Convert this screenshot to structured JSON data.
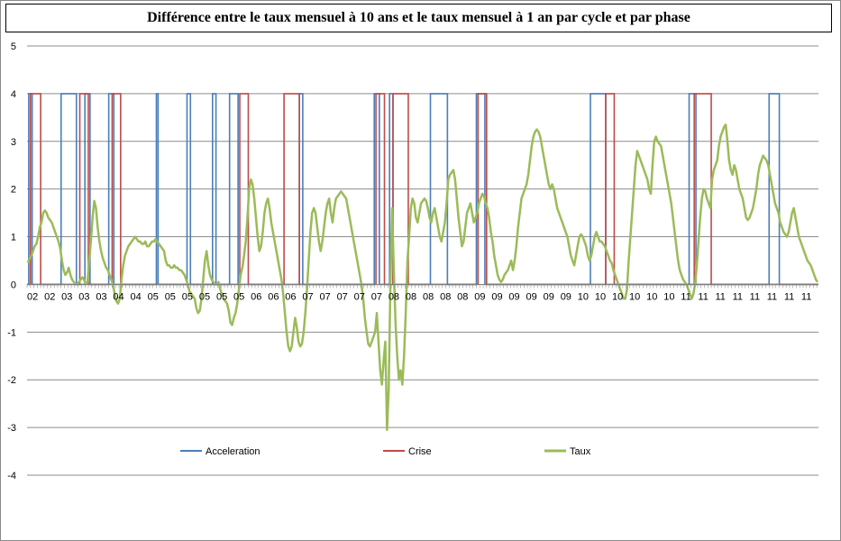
{
  "chart_data": {
    "type": "line",
    "title": "Différence entre le taux mensuel à 10 ans et le taux mensuel à 1 an par cycle et par phase",
    "xlabel": "",
    "ylabel": "",
    "ylim": [
      -4,
      5
    ],
    "yticks": [
      -4,
      -3,
      -2,
      -1,
      0,
      1,
      2,
      3,
      4,
      5
    ],
    "grid": true,
    "legend_position": "bottom",
    "x_tick_labels": [
      "02",
      "02",
      "03",
      "03",
      "03",
      "04",
      "04",
      "05",
      "05",
      "05",
      "05",
      "05",
      "05",
      "06",
      "06",
      "06",
      "07",
      "07",
      "07",
      "07",
      "07",
      "08",
      "08",
      "08",
      "08",
      "08",
      "09",
      "09",
      "09",
      "09",
      "09",
      "09",
      "10",
      "10",
      "10",
      "10",
      "10",
      "10",
      "11",
      "11",
      "11",
      "11",
      "11",
      "11",
      "11",
      "11"
    ],
    "series": [
      {
        "name": "Acceleration",
        "color": "#4a7ebb",
        "kind": "step",
        "intervals_on": [
          [
            1,
            2
          ],
          [
            20,
            28
          ],
          [
            34,
            36
          ],
          [
            48,
            50
          ],
          [
            76,
            76
          ],
          [
            94,
            95
          ],
          [
            109,
            110
          ],
          [
            119,
            123
          ],
          [
            160,
            161
          ],
          [
            204,
            206
          ],
          [
            213,
            214
          ],
          [
            237,
            246
          ],
          [
            264,
            268
          ],
          [
            331,
            339
          ],
          [
            389,
            392
          ],
          [
            436,
            441
          ]
        ]
      },
      {
        "name": "Crise",
        "color": "#be4b48",
        "kind": "step",
        "intervals_on": [
          [
            2,
            7
          ],
          [
            31,
            35
          ],
          [
            50,
            54
          ],
          [
            125,
            129
          ],
          [
            151,
            159
          ],
          [
            205,
            209
          ],
          [
            215,
            223
          ],
          [
            265,
            269
          ],
          [
            340,
            344
          ],
          [
            392,
            401
          ]
        ]
      },
      {
        "name": "Taux",
        "color": "#9bbb59",
        "kind": "line",
        "values": [
          0.45,
          0.55,
          0.6,
          0.7,
          0.8,
          0.85,
          1,
          1.2,
          1.3,
          1.5,
          1.55,
          1.5,
          1.4,
          1.35,
          1.3,
          1.2,
          1.1,
          1,
          0.9,
          0.75,
          0.5,
          0.3,
          0.2,
          0.25,
          0.35,
          0.2,
          0.1,
          0.05,
          0,
          0,
          0.05,
          0.1,
          0.15,
          0.1,
          0,
          0.05,
          0.5,
          0.9,
          1.4,
          1.75,
          1.6,
          1.2,
          0.9,
          0.7,
          0.55,
          0.45,
          0.35,
          0.3,
          0.2,
          0.1,
          0,
          -0.2,
          -0.35,
          -0.4,
          -0.3,
          0.1,
          0.4,
          0.6,
          0.7,
          0.8,
          0.85,
          0.9,
          0.95,
          1,
          0.95,
          0.9,
          0.9,
          0.85,
          0.85,
          0.9,
          0.8,
          0.8,
          0.85,
          0.9,
          0.9,
          0.95,
          0.9,
          0.85,
          0.8,
          0.75,
          0.7,
          0.5,
          0.4,
          0.4,
          0.35,
          0.35,
          0.4,
          0.35,
          0.35,
          0.3,
          0.3,
          0.25,
          0.2,
          0.1,
          0,
          -0.15,
          -0.2,
          -0.25,
          -0.3,
          -0.5,
          -0.6,
          -0.55,
          -0.3,
          0.1,
          0.5,
          0.7,
          0.4,
          0.2,
          0.1,
          0.05,
          0,
          0,
          0.05,
          -0.1,
          -0.2,
          -0.3,
          -0.35,
          -0.4,
          -0.55,
          -0.8,
          -0.85,
          -0.7,
          -0.6,
          -0.4,
          -0.1,
          0.2,
          0.35,
          0.6,
          0.9,
          1.4,
          2,
          2.2,
          2.1,
          1.8,
          1.4,
          1,
          0.7,
          0.8,
          1.1,
          1.5,
          1.7,
          1.8,
          1.6,
          1.3,
          1.1,
          0.9,
          0.7,
          0.5,
          0.3,
          0.1,
          -0.2,
          -0.6,
          -1,
          -1.3,
          -1.4,
          -1.3,
          -1,
          -0.7,
          -0.9,
          -1.2,
          -1.3,
          -1.25,
          -1,
          -0.6,
          -0.1,
          0.5,
          1.1,
          1.5,
          1.6,
          1.5,
          1.2,
          0.9,
          0.7,
          0.9,
          1.2,
          1.5,
          1.7,
          1.8,
          1.5,
          1.3,
          1.6,
          1.8,
          1.85,
          1.9,
          1.95,
          1.9,
          1.85,
          1.8,
          1.6,
          1.4,
          1.2,
          1,
          0.8,
          0.6,
          0.4,
          0.2,
          0,
          -0.3,
          -0.7,
          -1,
          -1.25,
          -1.3,
          -1.2,
          -1.1,
          -1,
          -0.6,
          -1.2,
          -1.8,
          -2.1,
          -1.6,
          -1.2,
          -3.05,
          -2.2,
          0,
          1.6,
          0.3,
          -0.8,
          -1.5,
          -2,
          -1.8,
          -2.1,
          -1.5,
          -0.6,
          0.5,
          1,
          1.6,
          1.8,
          1.7,
          1.4,
          1.3,
          1.5,
          1.7,
          1.75,
          1.8,
          1.75,
          1.6,
          1.4,
          1.3,
          1.5,
          1.6,
          1.4,
          1.2,
          1,
          0.9,
          1.1,
          1.3,
          1.7,
          2.2,
          2.3,
          2.35,
          2.4,
          2.2,
          1.8,
          1.4,
          1.1,
          0.8,
          0.9,
          1.2,
          1.5,
          1.6,
          1.7,
          1.5,
          1.3,
          1.4,
          1.5,
          1.7,
          1.8,
          1.9,
          1.85,
          1.7,
          1.6,
          1.4,
          1.1,
          0.9,
          0.6,
          0.4,
          0.2,
          0.1,
          0.05,
          0.1,
          0.2,
          0.25,
          0.3,
          0.4,
          0.5,
          0.3,
          0.5,
          0.8,
          1.2,
          1.5,
          1.8,
          1.9,
          2,
          2.1,
          2.3,
          2.6,
          2.9,
          3.1,
          3.2,
          3.25,
          3.2,
          3.1,
          2.9,
          2.7,
          2.5,
          2.3,
          2.1,
          2,
          2.1,
          2,
          1.8,
          1.6,
          1.5,
          1.4,
          1.3,
          1.2,
          1.1,
          1,
          0.8,
          0.6,
          0.5,
          0.4,
          0.6,
          0.8,
          1,
          1.05,
          1,
          0.9,
          0.8,
          0.6,
          0.5,
          0.6,
          0.8,
          1,
          1.1,
          1,
          0.9,
          0.9,
          0.85,
          0.8,
          0.7,
          0.6,
          0.5,
          0.45,
          0.3,
          0.2,
          0.1,
          0,
          -0.1,
          -0.2,
          -0.3,
          -0.3,
          -0.1,
          0.5,
          1,
          1.5,
          2,
          2.5,
          2.8,
          2.7,
          2.6,
          2.5,
          2.4,
          2.3,
          2.2,
          2,
          1.9,
          2.5,
          3,
          3.1,
          3,
          2.95,
          2.9,
          2.7,
          2.5,
          2.3,
          2.1,
          1.9,
          1.7,
          1.4,
          1.1,
          0.8,
          0.5,
          0.3,
          0.2,
          0.1,
          0.05,
          0,
          -0.1,
          -0.2,
          -0.3,
          -0.2,
          0,
          0.4,
          0.9,
          1.4,
          1.8,
          2,
          1.95,
          1.8,
          1.7,
          1.6,
          2.2,
          2.4,
          2.5,
          2.6,
          2.9,
          3.1,
          3.2,
          3.3,
          3.35,
          3,
          2.6,
          2.4,
          2.3,
          2.5,
          2.4,
          2.2,
          2,
          1.9,
          1.8,
          1.6,
          1.4,
          1.35,
          1.4,
          1.5,
          1.6,
          1.8,
          2,
          2.3,
          2.5,
          2.6,
          2.7,
          2.65,
          2.6,
          2.5,
          2.3,
          2.1,
          1.9,
          1.7,
          1.6,
          1.5,
          1.3,
          1.2,
          1.1,
          1.05,
          1,
          1.1,
          1.3,
          1.5,
          1.6,
          1.4,
          1.2,
          1,
          0.9,
          0.8,
          0.7,
          0.6,
          0.5,
          0.45,
          0.4,
          0.3,
          0.2,
          0.1,
          0.05
        ]
      }
    ]
  }
}
